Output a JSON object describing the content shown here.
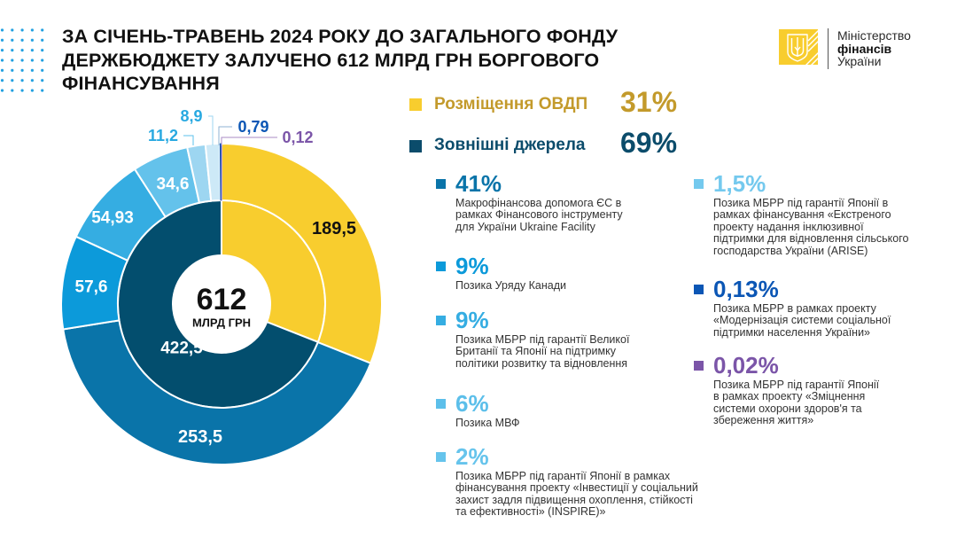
{
  "header": {
    "title_lines": [
      "ЗА СІЧЕНЬ-ТРАВЕНЬ 2024 РОКУ ДО ЗАГАЛЬНОГО ФОНДУ",
      "ДЕРЖБЮДЖЕТУ ЗАЛУЧЕНО 612 МЛРД ГРН БОРГОВОГО",
      "ФІНАНСУВАННЯ"
    ],
    "logo": {
      "name_line1": "Міністерство",
      "name_line2": "фінансів",
      "name_line3": "України",
      "emblem_icon": "trident-icon",
      "brand_color": "#F8CD2E"
    },
    "decoration_color": "#1E9FE0"
  },
  "summary": {
    "domestic": {
      "label": "Розміщення ОВДП",
      "percent": "31%",
      "swatch_color": "#F8CD2E",
      "text_color": "#C39A2B"
    },
    "external": {
      "label": "Зовнішні джерела",
      "percent": "69%",
      "swatch_color": "#0B4C6B",
      "text_color": "#0B4C6B"
    }
  },
  "legend": {
    "left": [
      {
        "percent": "41%",
        "color": "#0A74A9",
        "description": "Макрофінансова допомога ЄС в\nрамках Фінансового інструменту\nдля України Ukraine Facility"
      },
      {
        "percent": "9%",
        "color": "#0C9ADA",
        "description": "Позика Уряду Канади"
      },
      {
        "percent": "9%",
        "color": "#35ADE2",
        "description": "Позика МБРР під гарантії Великої\nБританії та Японії на підтримку\nполітики розвитку та відновлення"
      },
      {
        "percent": "6%",
        "color": "#5CBFEA",
        "description": "Позика МВФ"
      },
      {
        "percent": "2%",
        "color": "#66C4EC",
        "description": "Позика МБРР під гарантії Японії в рамках\nфінансування проекту «Інвестиції у соціальний\nзахист задля підвищення охоплення, стійкості\nта ефективності» (INSPIRE)»"
      }
    ],
    "right": [
      {
        "percent": "1,5%",
        "color": "#74C9EE",
        "description": "Позика МБРР під гарантії Японії в\nрамках фінансування «Екстреного\nпроекту надання інклюзивної\nпідтримки для відновлення сільського\nгосподарства України (ARISE)"
      },
      {
        "percent": "0,13%",
        "color": "#0B56B5",
        "description": "Позика МБРР в рамках проекту\n«Модернізація системи соціальної\nпідтримки населення України»"
      },
      {
        "percent": "0,02%",
        "color": "#7B55A8",
        "description": "Позика МБРР під гарантії Японії\nв рамках проекту «Зміцнення\nсистеми охорони здоров'я та\nзбереження життя»"
      }
    ]
  },
  "chart_data": {
    "type": "pie",
    "variant": "nested-donut",
    "title": "За січень-травень 2024 року до загального фонду держбюджету залучено 612 млрд грн боргового фінансування",
    "unit": "млрд грн",
    "total": 612,
    "center_value": "612",
    "center_label": "МЛРД ГРН",
    "legend_position": "right",
    "inner_ring": [
      {
        "name": "Розміщення ОВДП",
        "value": 189.5,
        "label": "189,5",
        "label_visible": false,
        "color": "#F8CD2E",
        "label_color": "#111111"
      },
      {
        "name": "Зовнішні джерела",
        "value": 422.5,
        "label": "422,5",
        "label_visible": true,
        "color": "#034E6E",
        "label_color": "#FFFFFF"
      }
    ],
    "outer_ring": [
      {
        "name": "Розміщення ОВДП",
        "value": 189.5,
        "label": "189,5",
        "share": "31%",
        "color": "#F8CD2E",
        "label_color": "#111111"
      },
      {
        "name": "Макрофінансова допомога ЄС (Ukraine Facility)",
        "value": 253.5,
        "label": "253,5",
        "share": "41%",
        "color": "#0A74A9",
        "label_color": "#FFFFFF"
      },
      {
        "name": "Позика Уряду Канади",
        "value": 57.6,
        "label": "57,6",
        "share": "9%",
        "color": "#0C9ADA",
        "label_color": "#FFFFFF"
      },
      {
        "name": "Позика МБРР під гарантії Великої Британії та Японії",
        "value": 54.93,
        "label": "54,93",
        "share": "9%",
        "color": "#35ADE2",
        "label_color": "#FFFFFF"
      },
      {
        "name": "Позика МВФ",
        "value": 34.6,
        "label": "34,6",
        "share": "6%",
        "color": "#64C2EB",
        "label_color": "#FFFFFF"
      },
      {
        "name": "Позика МБРР (INSPIRE)",
        "value": 11.2,
        "label": "11,2",
        "share": "2%",
        "color": "#9DD6F1",
        "label_color": "#29A9E1"
      },
      {
        "name": "Позика МБРР (ARISE)",
        "value": 8.9,
        "label": "8,9",
        "share": "1,5%",
        "color": "#CDE9F7",
        "label_color": "#29A9E1"
      },
      {
        "name": "Позика МБРР (Модернізація системи соціальної підтримки)",
        "value": 0.79,
        "label": "0,79",
        "share": "0,13%",
        "color": "#0B56B5",
        "label_color": "#0B56B5"
      },
      {
        "name": "Позика МБРР (Зміцнення системи охорони здоров'я)",
        "value": 0.12,
        "label": "0,12",
        "share": "0,02%",
        "color": "#7B55A8",
        "label_color": "#7B55A8"
      }
    ]
  }
}
